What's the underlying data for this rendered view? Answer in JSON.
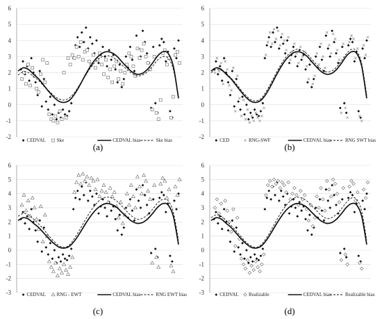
{
  "colors": {
    "ink": "#111111",
    "grid": "#d9d9d9",
    "axis": "#8c8c8c",
    "hollow": "#777777",
    "fill": "#ffffff"
  },
  "chart_data": [
    {
      "type": "scatter",
      "label": "(a)",
      "ylim": [
        -2,
        6
      ],
      "yticks": [
        -2,
        -1,
        0,
        1,
        2,
        3,
        4,
        5,
        6
      ],
      "grid": true,
      "legend_placement": "bottom",
      "series": [
        {
          "name": "CEDVAL",
          "marker": "filled-diamond",
          "values": [
            2.2,
            2.7,
            1.9,
            2.4,
            1.5,
            2.9,
            2.0,
            1.4,
            0.6,
            2.1,
            -0.1,
            1.6,
            0.2,
            -0.3,
            0.5,
            -0.6,
            0.0,
            -0.9,
            -0.5,
            -0.8,
            -0.3,
            -0.6,
            -0.7,
            -0.4,
            0.1,
            2.9,
            3.7,
            4.2,
            3.6,
            4.5,
            3.9,
            4.8,
            3.5,
            4.2,
            3.8,
            3.2,
            4.0,
            2.6,
            3.1,
            3.6,
            3.0,
            2.4,
            3.4,
            2.8,
            3.1,
            2.2,
            1.4,
            2.5,
            1.1,
            1.6,
            3.0,
            2.3,
            3.6,
            2.8,
            2.1,
            4.3,
            3.5,
            3.0,
            4.6,
            3.9,
            3.2,
            2.6,
            -0.2,
            3.6,
            0.1,
            -0.5,
            3.7,
            4.1,
            3.9,
            2.7,
            3.3,
            -0.4,
            -0.8,
            3.5,
            2.9,
            4.0
          ]
        },
        {
          "name": "Ske",
          "marker": "hollow-square",
          "values": [
            1.6,
            2.0,
            1.3,
            2.5,
            1.2,
            2.3,
            1.8,
            1.0,
            0.8,
            1.9,
            2.8,
            1.4,
            2.6,
            -0.6,
            -0.9,
            -1.0,
            -0.7,
            -1.1,
            -0.4,
            -0.9,
            2.0,
            -0.8,
            2.9,
            2.5,
            3.1,
            2.9,
            3.6,
            3.0,
            3.9,
            2.8,
            3.3,
            3.4,
            2.7,
            2.5,
            3.1,
            2.3,
            2.8,
            3.2,
            2.5,
            1.9,
            2.8,
            1.7,
            2.2,
            1.4,
            2.4,
            2.7,
            1.6,
            2.1,
            1.3,
            2.0,
            2.5,
            3.2,
            3.0,
            2.4,
            1.8,
            3.5,
            2.9,
            3.4,
            3.8,
            3.0,
            2.6,
            2.2,
            -0.3,
            3.0,
            -0.5,
            -0.9,
            0.3,
            3.2,
            3.4,
            2.5,
            2.9,
            -0.8,
            0.5,
            3.1,
            3.3,
            2.6
          ]
        },
        {
          "name": "CEDVAL bias",
          "line": "solid",
          "values": [
            2.1,
            2.3,
            2.2,
            1.9,
            1.6,
            1.2,
            0.8,
            0.45,
            0.2,
            0.15,
            0.3,
            0.7,
            1.25,
            1.85,
            2.4,
            2.85,
            3.15,
            3.3,
            3.25,
            3.05,
            2.7,
            2.35,
            2.05,
            1.9,
            1.95,
            2.2,
            2.6,
            3.05,
            3.3,
            3.2,
            2.4,
            0.4
          ]
        },
        {
          "name": "Ske bias",
          "line": "dashed",
          "values": [
            1.85,
            2.05,
            2.0,
            1.75,
            1.5,
            1.15,
            0.85,
            0.55,
            0.35,
            0.3,
            0.45,
            0.8,
            1.3,
            1.8,
            2.3,
            2.7,
            2.95,
            3.05,
            3.0,
            2.8,
            2.5,
            2.2,
            1.95,
            1.8,
            1.85,
            2.05,
            2.4,
            2.8,
            3.0,
            2.9,
            2.2,
            0.5
          ]
        }
      ]
    },
    {
      "type": "scatter",
      "label": "(b)",
      "ylim": [
        -2,
        6
      ],
      "yticks": [
        -2,
        -1,
        0,
        1,
        2,
        3,
        4,
        5,
        6
      ],
      "grid": true,
      "legend_placement": "bottom",
      "series": [
        {
          "name": "CED",
          "marker": "filled-diamond",
          "values": [
            2.2,
            2.7,
            1.9,
            2.4,
            1.5,
            2.9,
            2.0,
            1.4,
            0.6,
            2.1,
            -0.1,
            1.6,
            0.2,
            -0.3,
            0.5,
            -0.6,
            0.0,
            -0.9,
            -0.5,
            -0.8,
            -0.3,
            -0.6,
            -0.7,
            -0.4,
            0.1,
            2.9,
            3.7,
            4.2,
            3.6,
            4.5,
            3.9,
            4.8,
            3.5,
            4.2,
            3.8,
            3.2,
            4.0,
            2.6,
            3.1,
            3.6,
            3.0,
            2.4,
            3.4,
            2.8,
            3.1,
            2.2,
            1.4,
            2.5,
            1.1,
            1.6,
            3.0,
            2.3,
            3.6,
            2.8,
            2.1,
            4.3,
            3.5,
            3.0,
            4.6,
            3.9,
            3.2,
            2.6,
            -0.2,
            3.6,
            0.1,
            -0.5,
            3.7,
            4.1,
            3.9,
            2.7,
            3.3,
            -0.4,
            -0.8,
            3.5,
            2.9,
            4.0
          ]
        },
        {
          "name": "RNG-SWF",
          "marker": "cross",
          "values": [
            2.0,
            2.9,
            2.1,
            2.6,
            1.3,
            2.7,
            2.2,
            1.2,
            0.9,
            2.3,
            -0.4,
            1.8,
            0.4,
            -0.7,
            0.3,
            -0.9,
            -0.3,
            -1.1,
            -0.7,
            -1.0,
            -0.5,
            -0.8,
            -1.0,
            -0.7,
            -0.2,
            3.1,
            3.9,
            4.5,
            3.8,
            4.7,
            4.1,
            4.6,
            3.7,
            4.4,
            4.0,
            3.4,
            4.2,
            2.8,
            3.3,
            3.8,
            3.2,
            2.6,
            3.6,
            3.0,
            3.3,
            2.4,
            1.6,
            2.7,
            1.3,
            1.8,
            3.2,
            2.5,
            3.8,
            3.0,
            2.3,
            4.5,
            3.7,
            3.2,
            4.4,
            4.1,
            3.4,
            2.8,
            -0.5,
            3.8,
            -0.2,
            -0.8,
            3.9,
            4.3,
            4.1,
            2.9,
            3.5,
            -0.7,
            -1.0,
            3.7,
            3.1,
            4.2
          ]
        },
        {
          "name": "CEDVAL bias",
          "line": "solid",
          "values": [
            2.1,
            2.3,
            2.2,
            1.9,
            1.6,
            1.2,
            0.8,
            0.45,
            0.2,
            0.15,
            0.3,
            0.7,
            1.25,
            1.85,
            2.4,
            2.85,
            3.15,
            3.3,
            3.25,
            3.05,
            2.7,
            2.35,
            2.05,
            1.9,
            1.95,
            2.2,
            2.6,
            3.05,
            3.3,
            3.2,
            2.4,
            0.4
          ]
        },
        {
          "name": "RNG SWT bias",
          "line": "dashed",
          "values": [
            2.0,
            2.2,
            2.15,
            1.95,
            1.65,
            1.3,
            0.9,
            0.55,
            0.3,
            0.25,
            0.4,
            0.85,
            1.4,
            2.0,
            2.55,
            3.0,
            3.3,
            3.45,
            3.4,
            3.2,
            2.85,
            2.5,
            2.2,
            2.05,
            2.1,
            2.35,
            2.75,
            3.2,
            3.45,
            3.35,
            2.55,
            0.6
          ]
        }
      ]
    },
    {
      "type": "scatter",
      "label": "(c)",
      "ylim": [
        -3,
        6
      ],
      "yticks": [
        -3,
        -2,
        -1,
        0,
        1,
        2,
        3,
        4,
        5,
        6
      ],
      "grid": true,
      "legend_placement": "bottom",
      "series": [
        {
          "name": "CEDVAL",
          "marker": "filled-diamond",
          "values": [
            2.2,
            2.7,
            1.9,
            2.4,
            1.5,
            2.9,
            2.0,
            1.4,
            0.6,
            2.1,
            -0.1,
            1.6,
            0.2,
            -0.3,
            0.5,
            -0.6,
            0.0,
            -0.9,
            -0.5,
            -0.8,
            -0.3,
            -0.6,
            -0.7,
            -0.4,
            0.1,
            2.9,
            3.7,
            4.2,
            3.6,
            4.5,
            3.9,
            4.8,
            3.5,
            4.2,
            3.8,
            3.2,
            4.0,
            2.6,
            3.1,
            3.6,
            3.0,
            2.4,
            3.4,
            2.8,
            3.1,
            2.2,
            1.4,
            2.5,
            1.1,
            1.6,
            3.0,
            2.3,
            3.6,
            2.8,
            2.1,
            4.3,
            3.5,
            3.0,
            4.6,
            3.9,
            3.2,
            2.6,
            -0.2,
            3.6,
            0.1,
            -0.5,
            3.7,
            4.1,
            3.9,
            2.7,
            3.3,
            -0.4,
            -0.8,
            3.5,
            2.9,
            4.0
          ]
        },
        {
          "name": "RNG - EWT",
          "marker": "hollow-triangle",
          "values": [
            3.2,
            3.9,
            2.8,
            3.5,
            2.4,
            3.7,
            3.0,
            2.2,
            1.5,
            3.1,
            0.6,
            2.5,
            1.0,
            -0.8,
            -1.2,
            -1.5,
            -0.9,
            -1.8,
            -1.3,
            -1.6,
            -1.0,
            -1.4,
            -1.7,
            -1.2,
            -0.5,
            4.1,
            4.8,
            5.3,
            4.7,
            5.4,
            4.9,
            5.2,
            4.6,
            5.1,
            4.9,
            4.3,
            5.0,
            3.8,
            4.2,
            4.6,
            4.1,
            3.4,
            4.4,
            3.8,
            4.1,
            3.1,
            2.3,
            3.4,
            1.9,
            2.5,
            4.0,
            3.2,
            4.6,
            3.8,
            3.0,
            5.2,
            4.5,
            4.0,
            5.3,
            4.9,
            4.2,
            3.6,
            -0.9,
            4.6,
            -0.5,
            -1.2,
            4.7,
            5.1,
            4.9,
            3.7,
            4.3,
            -1.1,
            -1.5,
            4.5,
            3.9,
            5.0
          ]
        },
        {
          "name": "CEDVAL bias",
          "line": "solid",
          "values": [
            2.1,
            2.3,
            2.2,
            1.9,
            1.6,
            1.2,
            0.8,
            0.45,
            0.2,
            0.15,
            0.3,
            0.7,
            1.25,
            1.85,
            2.4,
            2.85,
            3.15,
            3.3,
            3.25,
            3.05,
            2.7,
            2.35,
            2.05,
            1.9,
            1.95,
            2.2,
            2.6,
            3.05,
            3.3,
            3.2,
            2.4,
            0.4
          ]
        },
        {
          "name": "RNG EWT bias",
          "line": "dashed",
          "values": [
            2.4,
            2.6,
            2.5,
            2.2,
            1.85,
            1.45,
            1.0,
            0.6,
            0.3,
            0.2,
            0.4,
            0.9,
            1.5,
            2.15,
            2.75,
            3.25,
            3.6,
            3.75,
            3.7,
            3.5,
            3.15,
            2.75,
            2.4,
            2.2,
            2.25,
            2.5,
            2.9,
            3.35,
            3.6,
            3.5,
            2.7,
            0.7
          ]
        }
      ]
    },
    {
      "type": "scatter",
      "label": "(d)",
      "ylim": [
        -3,
        6
      ],
      "yticks": [
        -3,
        -2,
        -1,
        0,
        1,
        2,
        3,
        4,
        5,
        6
      ],
      "grid": true,
      "legend_placement": "bottom",
      "series": [
        {
          "name": "CEDVAL",
          "marker": "filled-diamond",
          "values": [
            2.2,
            2.7,
            1.9,
            2.4,
            1.5,
            2.9,
            2.0,
            1.4,
            0.6,
            2.1,
            -0.1,
            1.6,
            0.2,
            -0.3,
            0.5,
            -0.6,
            0.0,
            -0.9,
            -0.5,
            -0.8,
            -0.3,
            -0.6,
            -0.7,
            -0.4,
            0.1,
            2.9,
            3.7,
            4.2,
            3.6,
            4.5,
            3.9,
            4.8,
            3.5,
            4.2,
            3.8,
            3.2,
            4.0,
            2.6,
            3.1,
            3.6,
            3.0,
            2.4,
            3.4,
            2.8,
            3.1,
            2.2,
            1.4,
            2.5,
            1.1,
            1.6,
            3.0,
            2.3,
            3.6,
            2.8,
            2.1,
            4.3,
            3.5,
            3.0,
            4.6,
            3.9,
            3.2,
            2.6,
            -0.2,
            3.6,
            0.1,
            -0.5,
            3.7,
            4.1,
            3.9,
            2.7,
            3.3,
            -0.4,
            -0.8,
            3.5,
            2.9,
            4.0
          ]
        },
        {
          "name": "Realizable",
          "marker": "hollow-diamond",
          "values": [
            3.0,
            3.6,
            2.6,
            3.3,
            2.2,
            3.5,
            2.8,
            2.0,
            1.3,
            2.9,
            0.3,
            2.3,
            0.8,
            -0.6,
            -1.0,
            -1.3,
            -0.7,
            -1.6,
            -1.1,
            -1.4,
            -0.8,
            -1.2,
            -1.5,
            -1.0,
            -0.3,
            3.9,
            4.6,
            4.9,
            4.5,
            5.0,
            4.7,
            4.9,
            4.4,
            4.8,
            4.6,
            4.1,
            4.8,
            3.6,
            4.0,
            4.4,
            3.9,
            3.2,
            4.2,
            3.6,
            3.9,
            2.9,
            2.1,
            3.2,
            1.7,
            2.3,
            3.8,
            3.0,
            4.4,
            3.6,
            2.8,
            4.9,
            4.3,
            3.8,
            5.0,
            4.7,
            4.0,
            3.4,
            -0.7,
            4.4,
            -0.3,
            -1.0,
            4.5,
            4.9,
            4.7,
            3.5,
            4.1,
            -0.9,
            -1.3,
            4.3,
            3.7,
            4.8
          ]
        },
        {
          "name": "CEDVAL bias",
          "line": "solid",
          "values": [
            2.1,
            2.3,
            2.2,
            1.9,
            1.6,
            1.2,
            0.8,
            0.45,
            0.2,
            0.15,
            0.3,
            0.7,
            1.25,
            1.85,
            2.4,
            2.85,
            3.15,
            3.3,
            3.25,
            3.05,
            2.7,
            2.35,
            2.05,
            1.9,
            1.95,
            2.2,
            2.6,
            3.05,
            3.3,
            3.2,
            2.4,
            0.4
          ]
        },
        {
          "name": "Realizable bias",
          "line": "dashed",
          "values": [
            2.3,
            2.5,
            2.4,
            2.1,
            1.75,
            1.35,
            0.95,
            0.55,
            0.3,
            0.2,
            0.4,
            0.85,
            1.45,
            2.1,
            2.7,
            3.2,
            3.55,
            3.75,
            3.7,
            3.5,
            3.15,
            2.8,
            2.45,
            2.25,
            2.3,
            2.55,
            2.95,
            3.4,
            3.7,
            3.6,
            2.75,
            0.7
          ]
        }
      ]
    }
  ]
}
